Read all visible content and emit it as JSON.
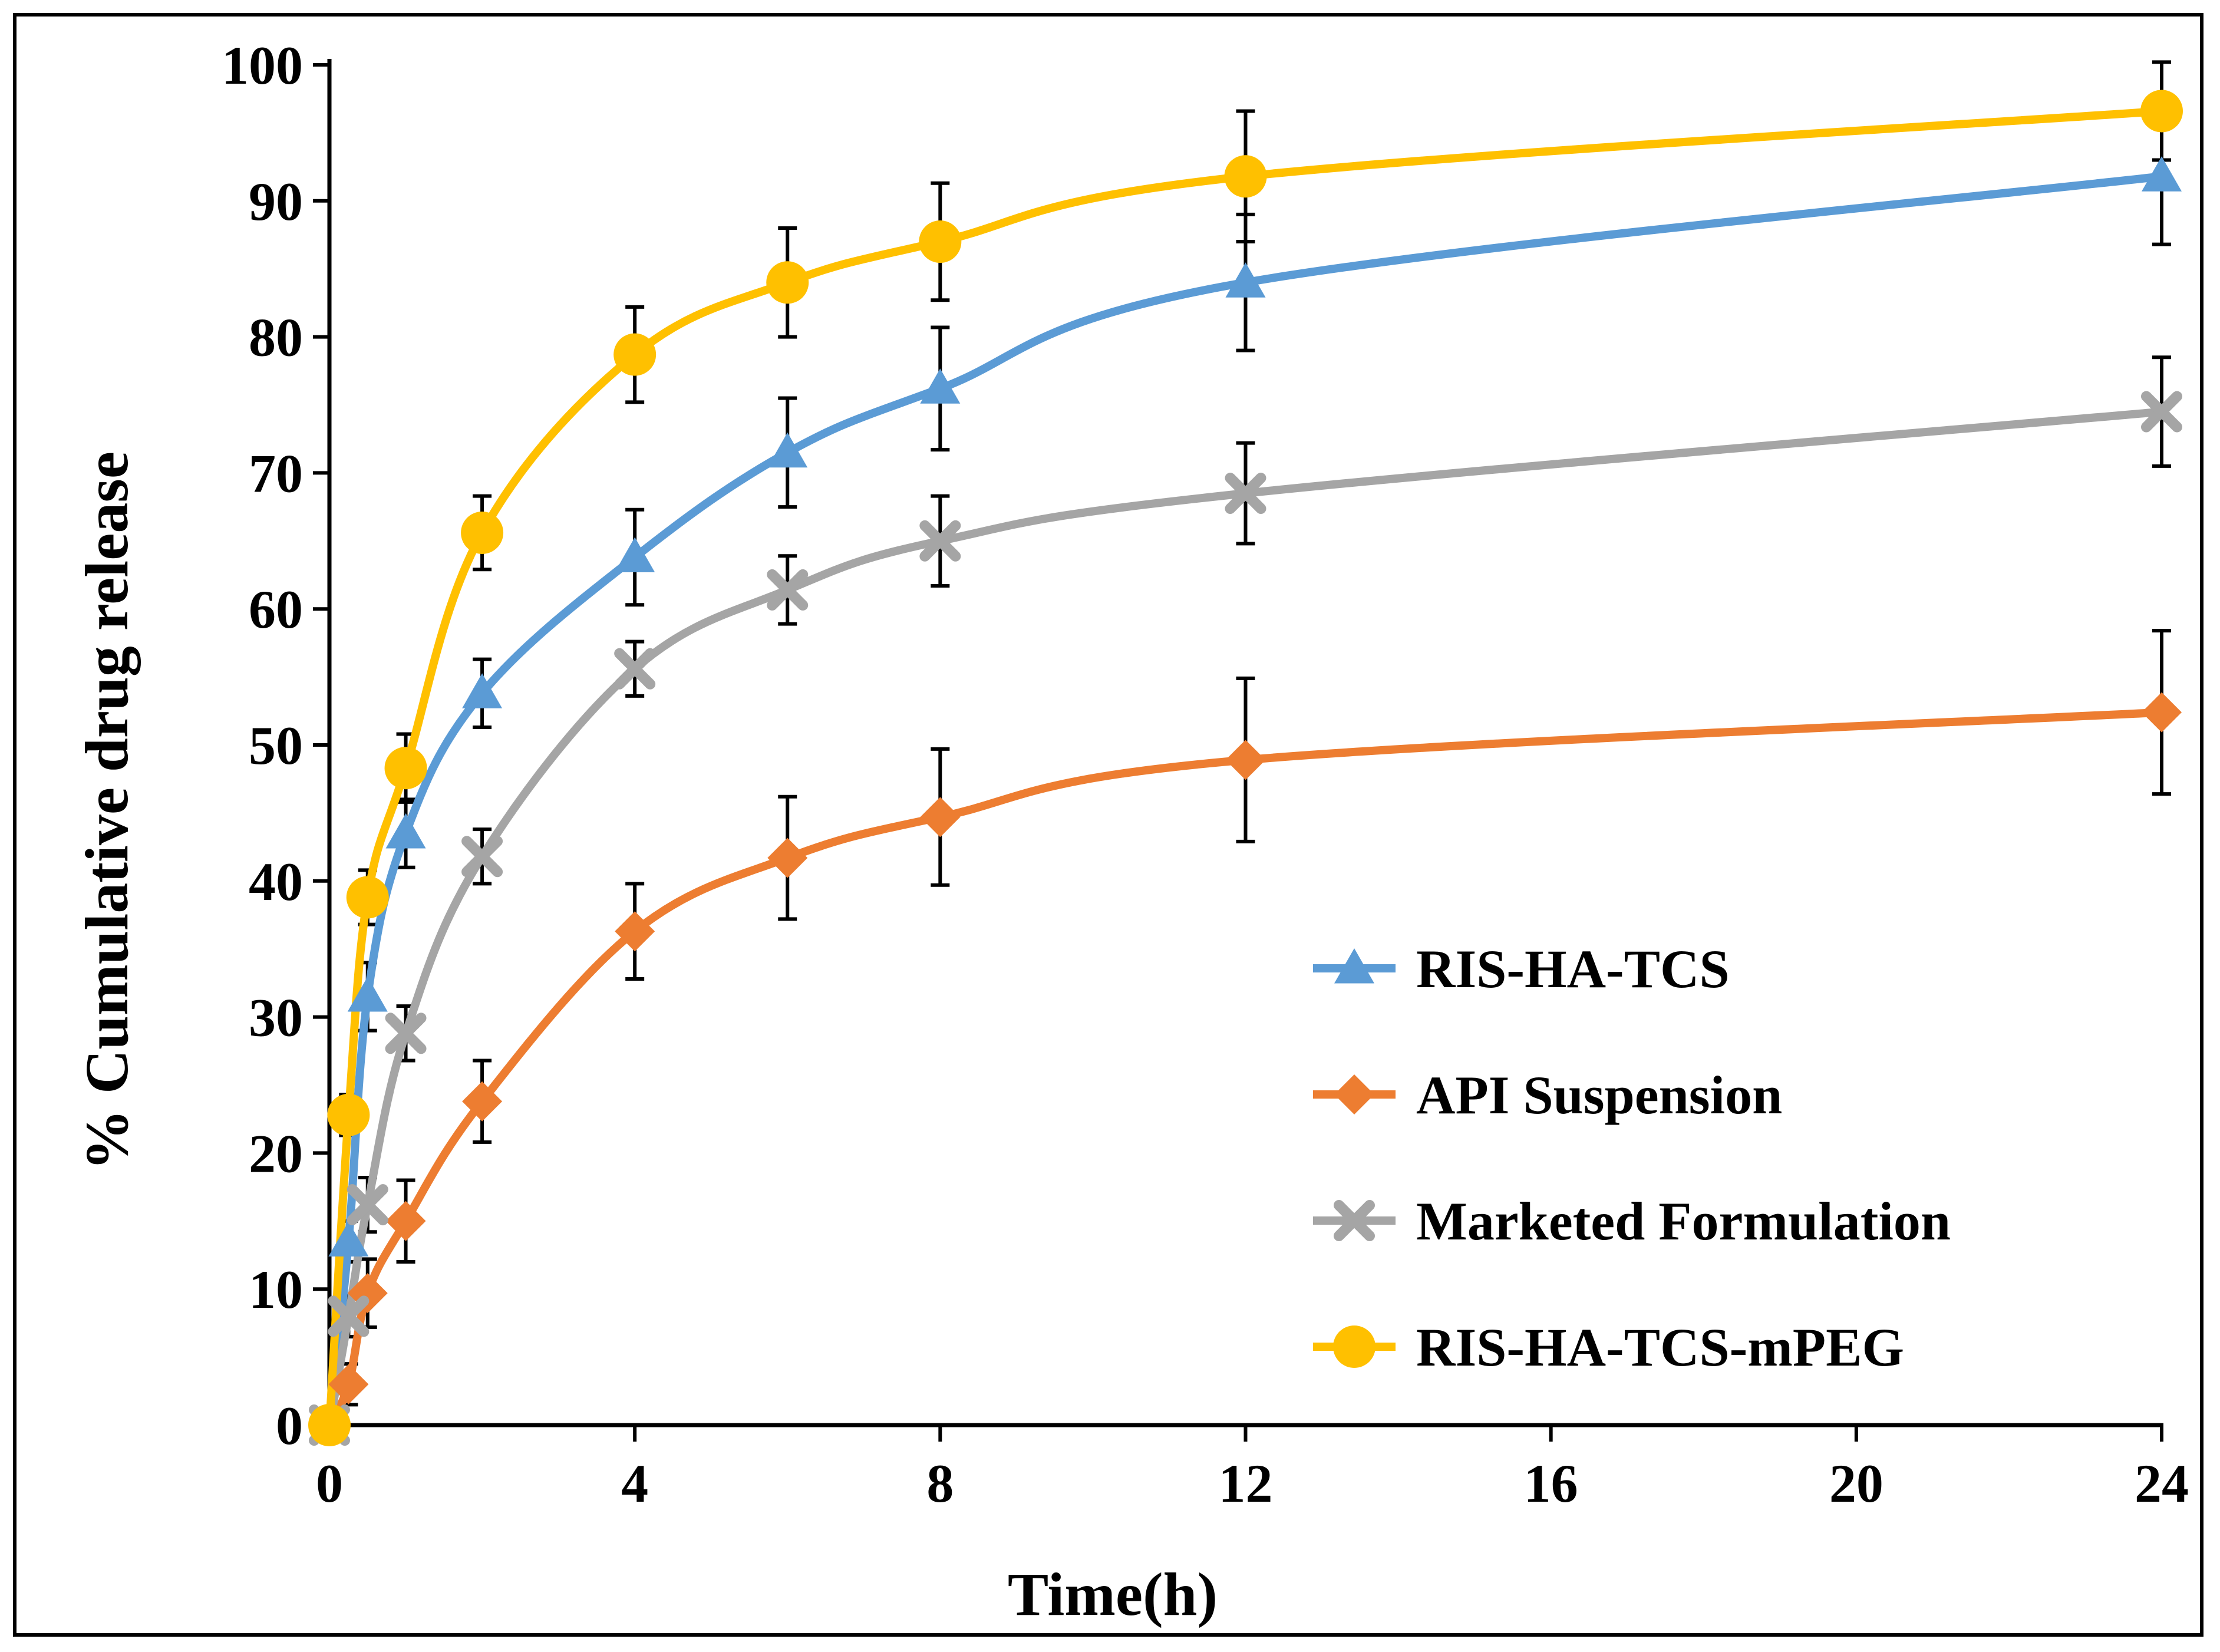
{
  "chart_data": {
    "type": "line",
    "title": "",
    "xlabel": "Time(h)",
    "ylabel": "% Cumulative drug release",
    "xlim": [
      0,
      24
    ],
    "ylim": [
      0,
      100
    ],
    "x_ticks": [
      "0",
      "4",
      "8",
      "12",
      "16",
      "20",
      "24"
    ],
    "y_ticks": [
      "0",
      "10",
      "20",
      "30",
      "40",
      "50",
      "60",
      "70",
      "80",
      "90",
      "100"
    ],
    "grid": false,
    "legend_position": "center-right",
    "series": [
      {
        "name": "RIS-HA-TCS",
        "color": "#5B9BD5",
        "marker": "triangle",
        "x": [
          0,
          0.25,
          0.5,
          1,
          2,
          4,
          6,
          8,
          12,
          24
        ],
        "y": [
          0,
          13.5,
          31.5,
          43.5,
          53.8,
          63.8,
          71.5,
          76.2,
          84,
          91.8
        ],
        "error": [
          0,
          1.5,
          2.5,
          2.5,
          2.5,
          3.5,
          4,
          4.5,
          5,
          5
        ]
      },
      {
        "name": "API Suspension",
        "color": "#ED7D31",
        "marker": "diamond",
        "x": [
          0,
          0.25,
          0.5,
          1,
          2,
          4,
          6,
          8,
          12,
          24
        ],
        "y": [
          0,
          3,
          9.7,
          15,
          23.8,
          36.3,
          41.7,
          44.7,
          48.9,
          52.4
        ],
        "error": [
          0,
          1.5,
          2.5,
          3,
          3,
          3.5,
          4.5,
          5,
          6,
          6
        ]
      },
      {
        "name": "Marketed Formulation",
        "color": "#A5A5A5",
        "marker": "x",
        "x": [
          0,
          0.25,
          0.5,
          1,
          2,
          4,
          6,
          8,
          12,
          24
        ],
        "y": [
          0,
          8,
          16.2,
          28.8,
          41.8,
          55.6,
          61.4,
          65,
          68.5,
          74.5
        ],
        "error": [
          0,
          1.5,
          2,
          2,
          2,
          2,
          2.5,
          3.3,
          3.7,
          4
        ]
      },
      {
        "name": "RIS-HA-TCS-mPEG",
        "color": "#FFC000",
        "marker": "circle",
        "x": [
          0,
          0.25,
          0.5,
          1,
          2,
          4,
          6,
          8,
          12,
          24
        ],
        "y": [
          0,
          22.8,
          38.8,
          48.3,
          65.6,
          78.7,
          84,
          87,
          91.8,
          96.6
        ],
        "error": [
          0,
          1.5,
          2,
          2.5,
          2.7,
          3.5,
          4,
          4.3,
          4.8,
          3.6
        ]
      }
    ]
  }
}
